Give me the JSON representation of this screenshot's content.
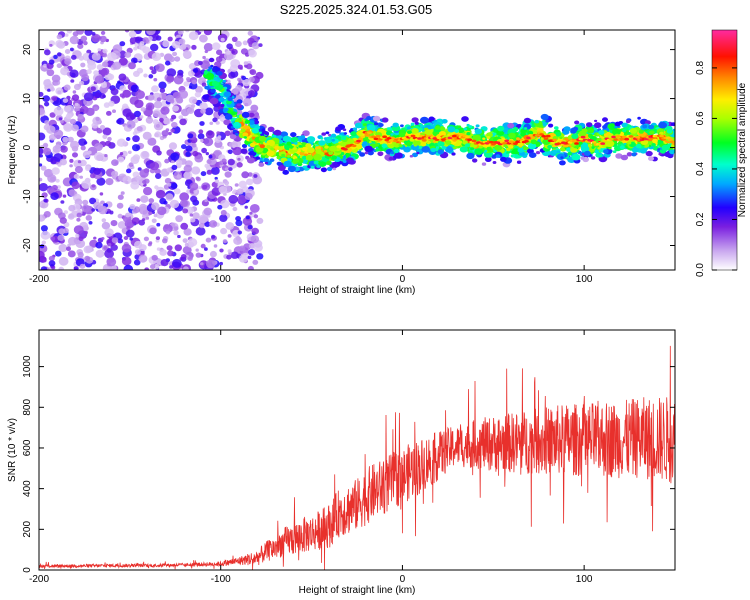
{
  "title": "S225.2025.324.01.53.G05",
  "chart_data": [
    {
      "type": "heatmap",
      "xlabel": "Height of straight line (km)",
      "ylabel": "Frequency (Hz)",
      "xlim": [
        -200,
        150
      ],
      "ylim": [
        -25,
        24
      ],
      "xticks": [
        -200,
        -100,
        0,
        100
      ],
      "yticks": [
        -20,
        -10,
        0,
        10,
        20
      ],
      "colorbar": {
        "label": "Normalized spectral amplitude",
        "range": [
          0,
          0.95
        ],
        "ticks": [
          0.0,
          0.2,
          0.4,
          0.6,
          0.8
        ]
      },
      "ridge": {
        "x": [
          -105,
          -100,
          -95,
          -90,
          -85,
          -80,
          -75,
          -70,
          -65,
          -60,
          -55,
          -50,
          -45,
          -40,
          -35,
          -30,
          -25,
          -20,
          -15,
          -10,
          -5,
          0,
          5,
          10,
          15,
          20,
          25,
          30,
          35,
          40,
          45,
          50,
          55,
          60,
          65,
          70,
          75,
          80,
          85,
          90,
          95,
          100,
          105,
          110,
          115,
          120,
          125,
          130,
          135,
          140,
          145,
          150
        ],
        "y": [
          14,
          12,
          8,
          5,
          3,
          1,
          0,
          0,
          -1,
          -1,
          -1,
          -1,
          -1,
          -1,
          0,
          0,
          1,
          3,
          2,
          2,
          1,
          2,
          2,
          2,
          2,
          2,
          2,
          2,
          2,
          1,
          1,
          1,
          1,
          1,
          1,
          2,
          3,
          2,
          1,
          1,
          1,
          2,
          1,
          1,
          2,
          2,
          2,
          2,
          2,
          2,
          2,
          1
        ]
      }
    },
    {
      "type": "line",
      "xlabel": "Height of straight line (km)",
      "ylabel": "SNR (10 * v/v)",
      "xlim": [
        -200,
        150
      ],
      "ylim": [
        0,
        1180
      ],
      "xticks": [
        -200,
        -100,
        0,
        100
      ],
      "yticks": [
        0,
        200,
        400,
        600,
        800,
        1000
      ],
      "series": [
        {
          "name": "SNR",
          "color": "#e8302c",
          "x": [
            -200,
            -180,
            -160,
            -140,
            -120,
            -100,
            -90,
            -80,
            -75,
            -70,
            -65,
            -60,
            -55,
            -50,
            -45,
            -40,
            -35,
            -30,
            -25,
            -20,
            -15,
            -10,
            -5,
            0,
            5,
            10,
            15,
            20,
            25,
            30,
            35,
            40,
            50,
            60,
            70,
            80,
            90,
            100,
            110,
            120,
            130,
            140,
            150
          ],
          "y": [
            20,
            20,
            22,
            22,
            25,
            30,
            45,
            60,
            90,
            110,
            140,
            150,
            170,
            180,
            200,
            220,
            280,
            300,
            320,
            360,
            390,
            410,
            440,
            460,
            490,
            510,
            540,
            560,
            590,
            610,
            610,
            620,
            620,
            625,
            630,
            635,
            640,
            640,
            645,
            640,
            650,
            645,
            640
          ],
          "amp": [
            8,
            8,
            8,
            8,
            8,
            12,
            20,
            40,
            50,
            60,
            70,
            80,
            90,
            90,
            100,
            110,
            120,
            130,
            130,
            140,
            140,
            140,
            140,
            140,
            140,
            140,
            130,
            120,
            110,
            100,
            110,
            120,
            140,
            150,
            160,
            170,
            180,
            180,
            190,
            190,
            200,
            210,
            220
          ]
        }
      ]
    }
  ]
}
